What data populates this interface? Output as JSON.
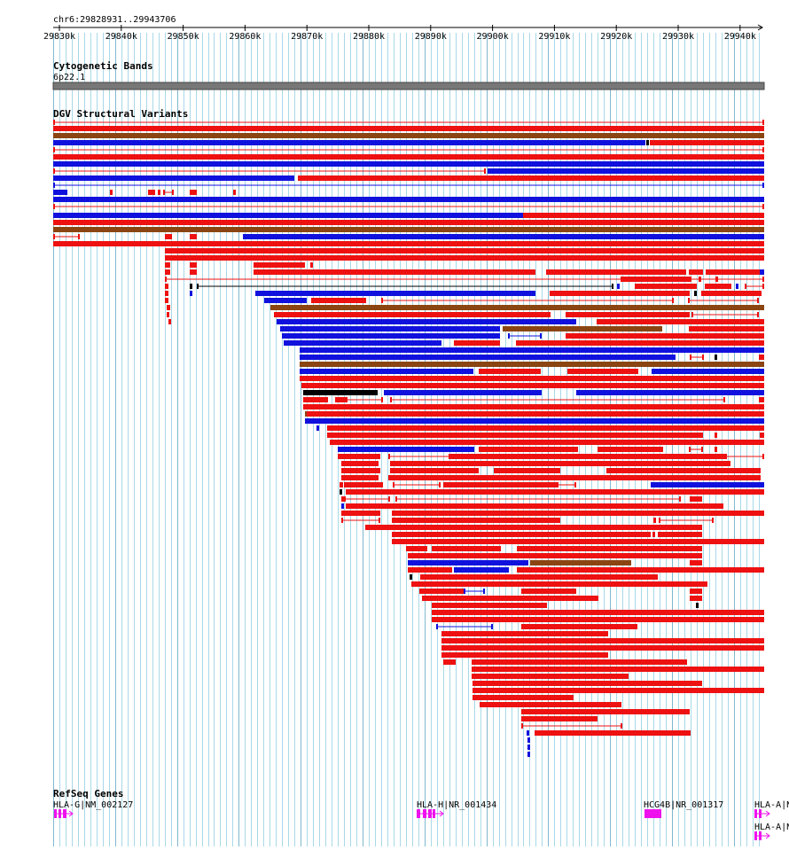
{
  "ruler": {
    "location": "chr6:29828931..29943706",
    "ticks": [
      "29830k",
      "29840k",
      "29850k",
      "29860k",
      "29870k",
      "29880k",
      "29890k",
      "29900k",
      "29910k",
      "29920k",
      "29930k",
      "29940k"
    ]
  },
  "cytoband": {
    "title": "Cytogenetic Bands",
    "band_label": "6p22.1"
  },
  "dgv": {
    "title": "DGV Structural Variants"
  },
  "refseq": {
    "title": "RefSeq Genes",
    "genes": [
      {
        "label": "HLA-G|NM_002127"
      },
      {
        "label": "HLA-H|NR_001434"
      },
      {
        "label": "HCG4B|NR_001317"
      },
      {
        "label": "HLA-A|N"
      },
      {
        "label": "HLA-A|N"
      }
    ]
  },
  "colors": {
    "loss": "#ee1111",
    "gain": "#1111dd",
    "both": "#8b4513",
    "other": "#000000",
    "gene": "#ee11ee",
    "gridline": "#a8d8e8",
    "band": "#777777"
  }
}
